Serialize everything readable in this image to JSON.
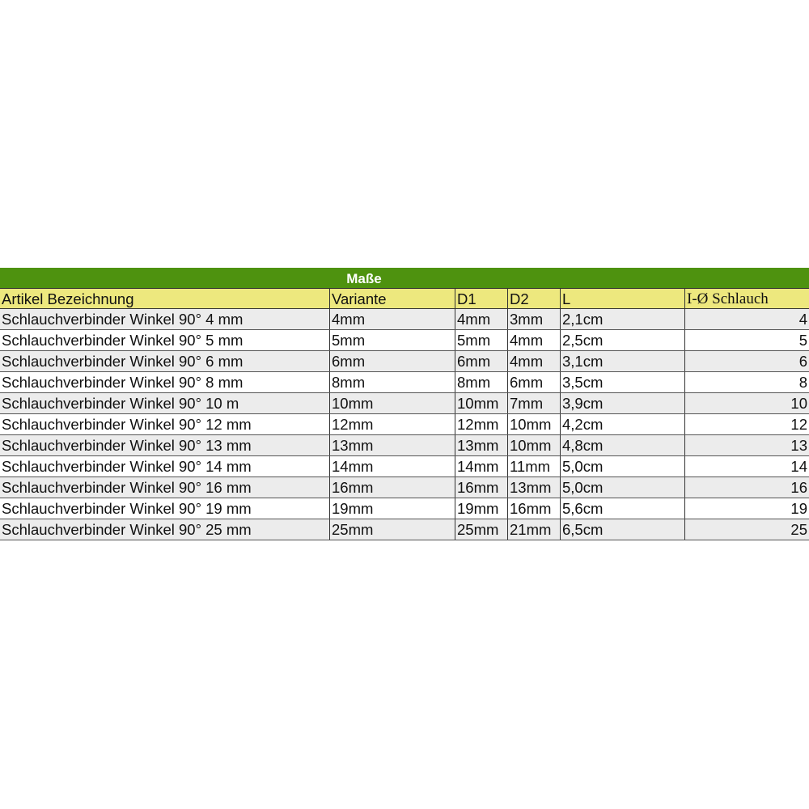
{
  "table": {
    "title": "Maße",
    "headers": [
      "Artikel Bezeichnung",
      "Variante",
      "D1",
      "D2",
      "L",
      "I-Ø Schlauch"
    ],
    "rows": [
      [
        "Schlauchverbinder Winkel 90° 4 mm",
        "4mm",
        "4mm",
        "3mm",
        "2,1cm",
        "4"
      ],
      [
        "Schlauchverbinder Winkel 90° 5 mm",
        "5mm",
        "5mm",
        "4mm",
        "2,5cm",
        "5"
      ],
      [
        "Schlauchverbinder Winkel 90° 6 mm",
        "6mm",
        "6mm",
        "4mm",
        "3,1cm",
        "6"
      ],
      [
        "Schlauchverbinder Winkel 90° 8 mm",
        "8mm",
        "8mm",
        "6mm",
        "3,5cm",
        "8"
      ],
      [
        "Schlauchverbinder Winkel 90° 10 m",
        "10mm",
        "10mm",
        "7mm",
        "3,9cm",
        "10"
      ],
      [
        "Schlauchverbinder Winkel 90° 12 mm",
        "12mm",
        "12mm",
        "10mm",
        "4,2cm",
        "12"
      ],
      [
        "Schlauchverbinder Winkel 90° 13 mm",
        "13mm",
        "13mm",
        "10mm",
        "4,8cm",
        "13"
      ],
      [
        "Schlauchverbinder Winkel 90° 14 mm",
        "14mm",
        "14mm",
        "11mm",
        "5,0cm",
        "14"
      ],
      [
        "Schlauchverbinder Winkel 90° 16 mm",
        "16mm",
        "16mm",
        "13mm",
        "5,0cm",
        "16"
      ],
      [
        "Schlauchverbinder Winkel 90° 19 mm",
        "19mm",
        "19mm",
        "16mm",
        "5,6cm",
        "19"
      ],
      [
        "Schlauchverbinder Winkel 90° 25 mm",
        "25mm",
        "25mm",
        "21mm",
        "6,5cm",
        "25"
      ]
    ],
    "colors": {
      "title_bg": "#4e920f",
      "header_bg": "#ede87e",
      "stripe": "#ececec"
    }
  }
}
